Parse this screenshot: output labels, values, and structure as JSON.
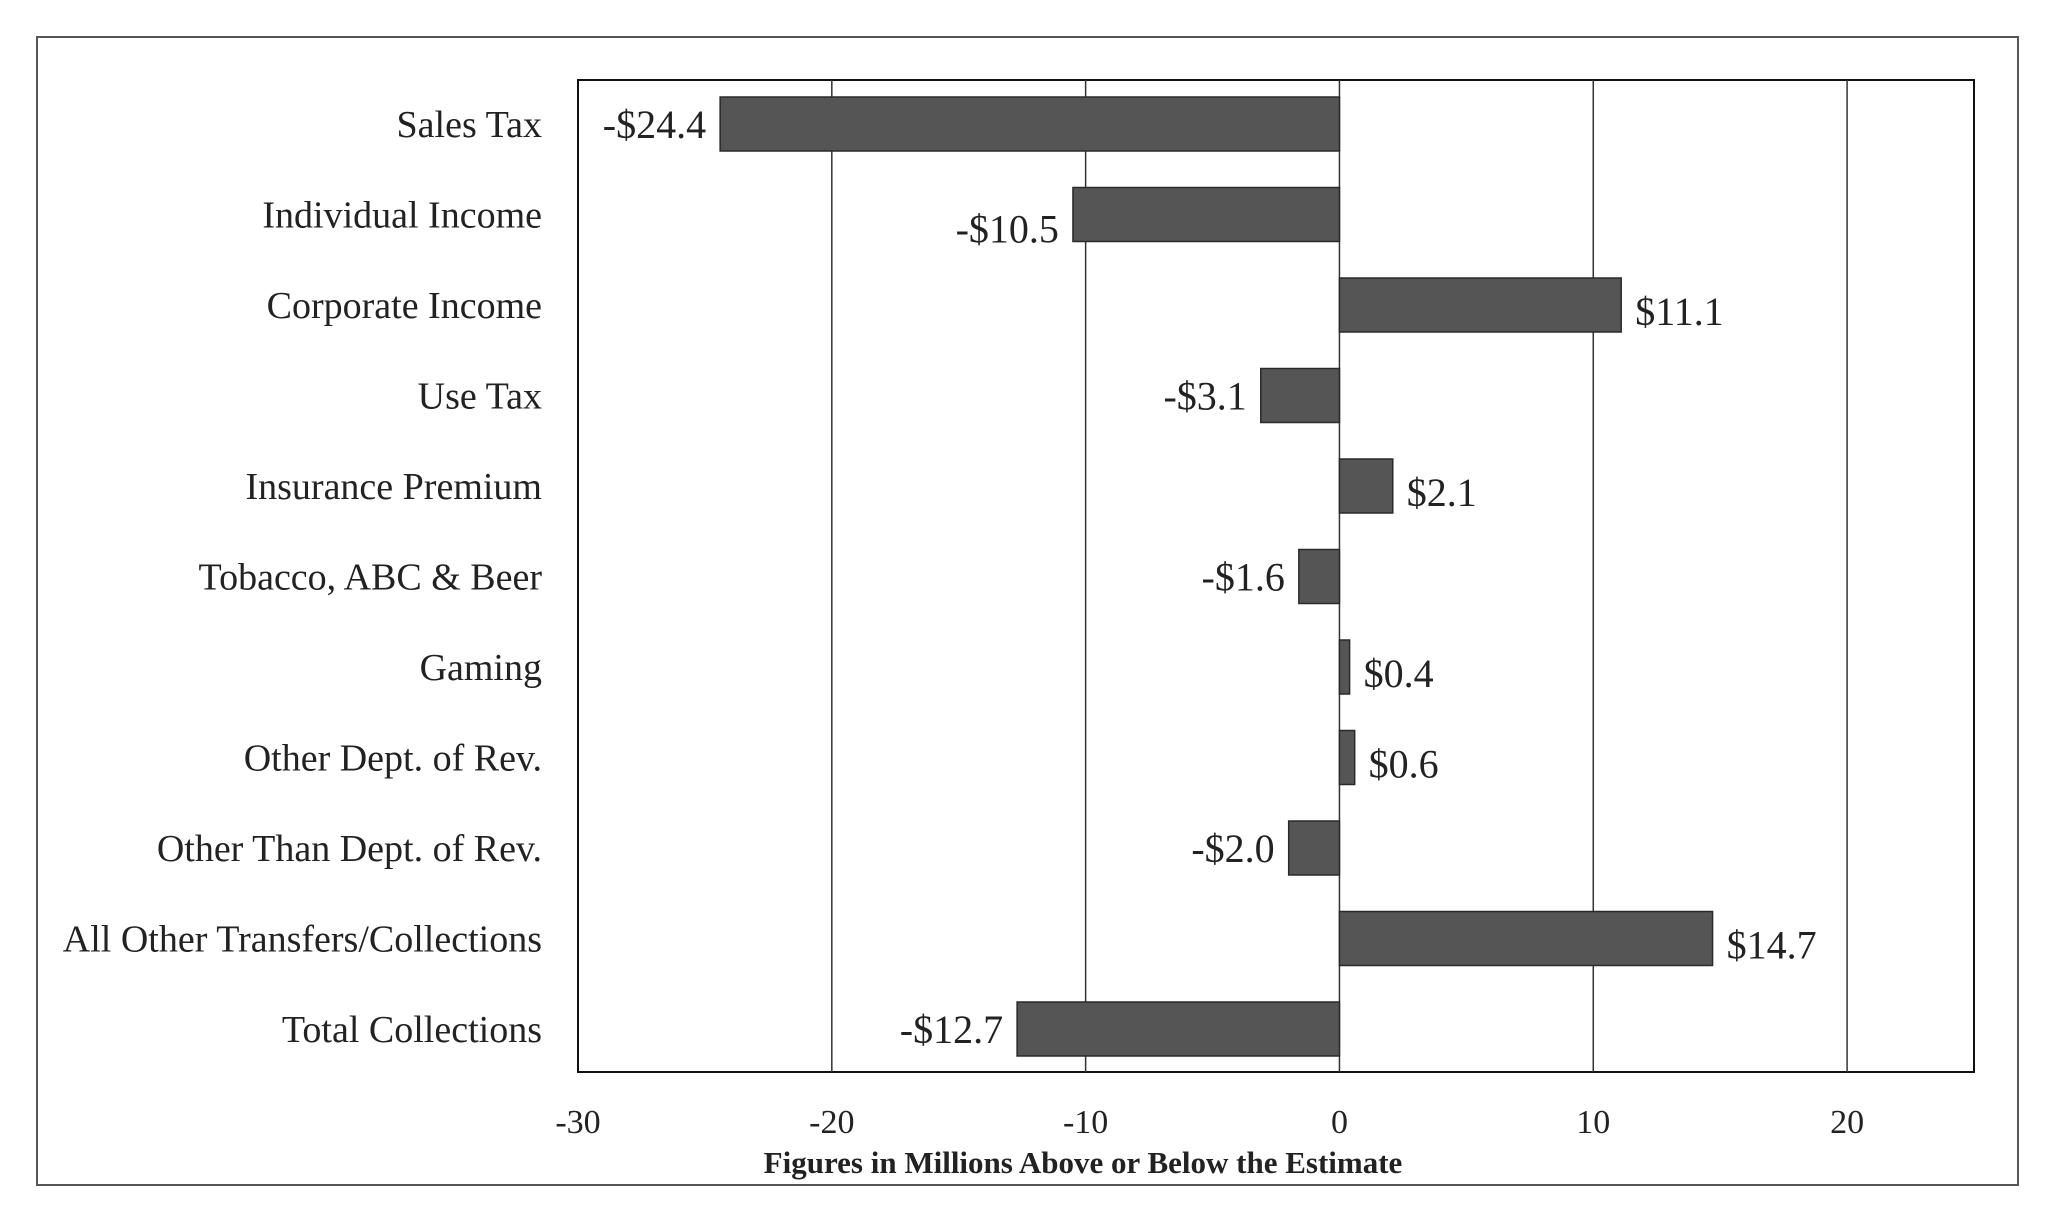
{
  "chart_data": {
    "type": "bar",
    "orientation": "horizontal",
    "title": "",
    "xlabel": "Figures in Millions Above or Below the Estimate",
    "ylabel": "",
    "xlim": [
      -30,
      25
    ],
    "xticks": [
      -30,
      -20,
      -10,
      0,
      10,
      20
    ],
    "grid": true,
    "bar_color": "#555555",
    "categories": [
      "Sales Tax",
      "Individual Income",
      "Corporate Income",
      "Use Tax",
      "Insurance Premium",
      "Tobacco, ABC & Beer",
      "Gaming",
      "Other Dept. of Rev.",
      "Other Than Dept. of Rev.",
      "All Other Transfers/Collections",
      "Total Collections"
    ],
    "values": [
      -24.4,
      -10.5,
      11.1,
      -3.1,
      2.1,
      -1.6,
      0.4,
      0.6,
      -2.0,
      14.7,
      -12.7
    ],
    "data_labels": [
      "-$24.4",
      "-$10.5",
      "$11.1",
      "-$3.1",
      "$2.1",
      "-$1.6",
      "$0.4",
      "$0.6",
      "-$2.0",
      "$14.7",
      "-$12.7"
    ]
  }
}
